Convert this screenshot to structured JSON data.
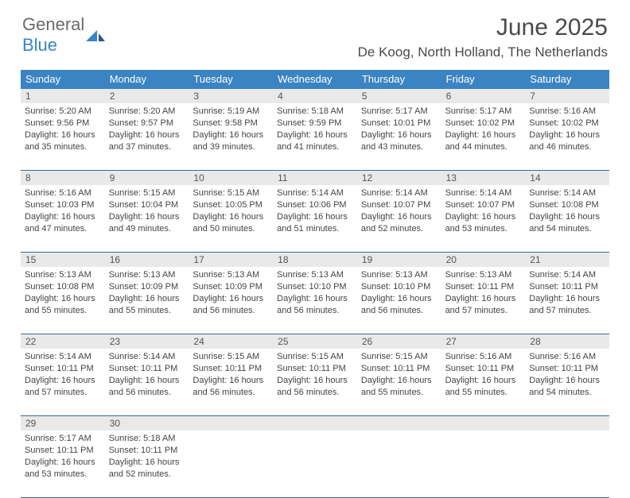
{
  "logo": {
    "word1": "General",
    "word2": "Blue"
  },
  "title": "June 2025",
  "location": "De Koog, North Holland, The Netherlands",
  "colors": {
    "header_bg": "#3a84c4",
    "header_text": "#ffffff",
    "daynum_bg": "#e9e9e9",
    "rule": "#3a6a94",
    "body_text": "#444444"
  },
  "day_names": [
    "Sunday",
    "Monday",
    "Tuesday",
    "Wednesday",
    "Thursday",
    "Friday",
    "Saturday"
  ],
  "weeks": [
    [
      {
        "n": "1",
        "sr": "5:20 AM",
        "ss": "9:56 PM",
        "dl": "16 hours and 35 minutes."
      },
      {
        "n": "2",
        "sr": "5:20 AM",
        "ss": "9:57 PM",
        "dl": "16 hours and 37 minutes."
      },
      {
        "n": "3",
        "sr": "5:19 AM",
        "ss": "9:58 PM",
        "dl": "16 hours and 39 minutes."
      },
      {
        "n": "4",
        "sr": "5:18 AM",
        "ss": "9:59 PM",
        "dl": "16 hours and 41 minutes."
      },
      {
        "n": "5",
        "sr": "5:17 AM",
        "ss": "10:01 PM",
        "dl": "16 hours and 43 minutes."
      },
      {
        "n": "6",
        "sr": "5:17 AM",
        "ss": "10:02 PM",
        "dl": "16 hours and 44 minutes."
      },
      {
        "n": "7",
        "sr": "5:16 AM",
        "ss": "10:02 PM",
        "dl": "16 hours and 46 minutes."
      }
    ],
    [
      {
        "n": "8",
        "sr": "5:16 AM",
        "ss": "10:03 PM",
        "dl": "16 hours and 47 minutes."
      },
      {
        "n": "9",
        "sr": "5:15 AM",
        "ss": "10:04 PM",
        "dl": "16 hours and 49 minutes."
      },
      {
        "n": "10",
        "sr": "5:15 AM",
        "ss": "10:05 PM",
        "dl": "16 hours and 50 minutes."
      },
      {
        "n": "11",
        "sr": "5:14 AM",
        "ss": "10:06 PM",
        "dl": "16 hours and 51 minutes."
      },
      {
        "n": "12",
        "sr": "5:14 AM",
        "ss": "10:07 PM",
        "dl": "16 hours and 52 minutes."
      },
      {
        "n": "13",
        "sr": "5:14 AM",
        "ss": "10:07 PM",
        "dl": "16 hours and 53 minutes."
      },
      {
        "n": "14",
        "sr": "5:14 AM",
        "ss": "10:08 PM",
        "dl": "16 hours and 54 minutes."
      }
    ],
    [
      {
        "n": "15",
        "sr": "5:13 AM",
        "ss": "10:08 PM",
        "dl": "16 hours and 55 minutes."
      },
      {
        "n": "16",
        "sr": "5:13 AM",
        "ss": "10:09 PM",
        "dl": "16 hours and 55 minutes."
      },
      {
        "n": "17",
        "sr": "5:13 AM",
        "ss": "10:09 PM",
        "dl": "16 hours and 56 minutes."
      },
      {
        "n": "18",
        "sr": "5:13 AM",
        "ss": "10:10 PM",
        "dl": "16 hours and 56 minutes."
      },
      {
        "n": "19",
        "sr": "5:13 AM",
        "ss": "10:10 PM",
        "dl": "16 hours and 56 minutes."
      },
      {
        "n": "20",
        "sr": "5:13 AM",
        "ss": "10:11 PM",
        "dl": "16 hours and 57 minutes."
      },
      {
        "n": "21",
        "sr": "5:14 AM",
        "ss": "10:11 PM",
        "dl": "16 hours and 57 minutes."
      }
    ],
    [
      {
        "n": "22",
        "sr": "5:14 AM",
        "ss": "10:11 PM",
        "dl": "16 hours and 57 minutes."
      },
      {
        "n": "23",
        "sr": "5:14 AM",
        "ss": "10:11 PM",
        "dl": "16 hours and 56 minutes."
      },
      {
        "n": "24",
        "sr": "5:15 AM",
        "ss": "10:11 PM",
        "dl": "16 hours and 56 minutes."
      },
      {
        "n": "25",
        "sr": "5:15 AM",
        "ss": "10:11 PM",
        "dl": "16 hours and 56 minutes."
      },
      {
        "n": "26",
        "sr": "5:15 AM",
        "ss": "10:11 PM",
        "dl": "16 hours and 55 minutes."
      },
      {
        "n": "27",
        "sr": "5:16 AM",
        "ss": "10:11 PM",
        "dl": "16 hours and 55 minutes."
      },
      {
        "n": "28",
        "sr": "5:16 AM",
        "ss": "10:11 PM",
        "dl": "16 hours and 54 minutes."
      }
    ],
    [
      {
        "n": "29",
        "sr": "5:17 AM",
        "ss": "10:11 PM",
        "dl": "16 hours and 53 minutes."
      },
      {
        "n": "30",
        "sr": "5:18 AM",
        "ss": "10:11 PM",
        "dl": "16 hours and 52 minutes."
      },
      null,
      null,
      null,
      null,
      null
    ]
  ],
  "labels": {
    "sunrise": "Sunrise: ",
    "sunset": "Sunset: ",
    "daylight": "Daylight: "
  }
}
